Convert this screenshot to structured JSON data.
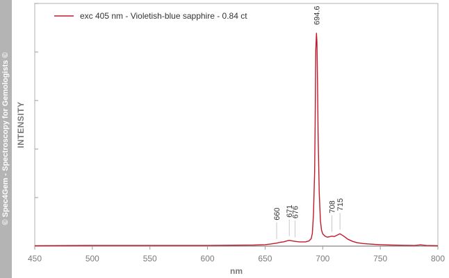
{
  "watermark": "© Spec4Gem - Spectroscopy for Gemologists ©",
  "chart_data": {
    "type": "line",
    "xlabel": "nm",
    "ylabel": "INTENSITY",
    "xlim": [
      450,
      800
    ],
    "ylim": [
      0,
      1.0
    ],
    "x_ticks": [
      450,
      500,
      550,
      600,
      650,
      700,
      750,
      800
    ],
    "grid": false,
    "legend_placement": "top-left",
    "series": [
      {
        "name": "exc 405 nm - Violetish-blue sapphire - 0.84 ct",
        "color": "#c0182a",
        "x": [
          450,
          500,
          550,
          600,
          640,
          650,
          655,
          660,
          663,
          666,
          668,
          670,
          671,
          673,
          676,
          680,
          685,
          688,
          690,
          691,
          692,
          693,
          693.5,
          694,
          694.6,
          695,
          695.5,
          696,
          697,
          698,
          699,
          700,
          702,
          704,
          706,
          708,
          710,
          712,
          715,
          718,
          722,
          726,
          730,
          735,
          740,
          745,
          750,
          760,
          770,
          780,
          785,
          790,
          800
        ],
        "y": [
          0.002,
          0.003,
          0.003,
          0.003,
          0.005,
          0.007,
          0.01,
          0.014,
          0.018,
          0.02,
          0.023,
          0.026,
          0.027,
          0.025,
          0.022,
          0.02,
          0.02,
          0.024,
          0.035,
          0.06,
          0.15,
          0.35,
          0.6,
          0.92,
          1.0,
          0.96,
          0.78,
          0.52,
          0.25,
          0.12,
          0.075,
          0.058,
          0.047,
          0.042,
          0.044,
          0.047,
          0.045,
          0.05,
          0.058,
          0.048,
          0.032,
          0.022,
          0.016,
          0.012,
          0.01,
          0.008,
          0.007,
          0.005,
          0.004,
          0.003,
          0.006,
          0.003,
          0.002
        ]
      }
    ],
    "annotations": [
      {
        "label": "694.6",
        "x": 694.6,
        "y": 1.0
      },
      {
        "label": "660",
        "x": 660,
        "y": 0.014
      },
      {
        "label": "671",
        "x": 671,
        "y": 0.027
      },
      {
        "label": "676",
        "x": 676,
        "y": 0.022
      },
      {
        "label": "708",
        "x": 708,
        "y": 0.047
      },
      {
        "label": "715",
        "x": 715,
        "y": 0.058
      }
    ]
  }
}
